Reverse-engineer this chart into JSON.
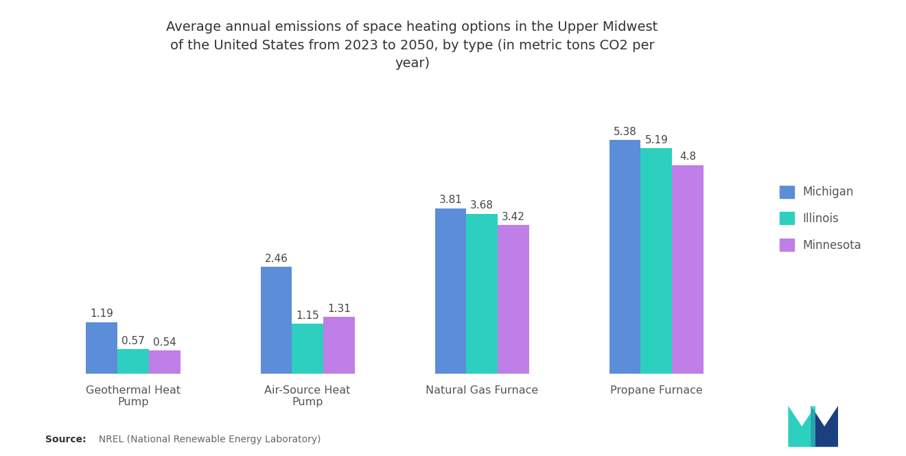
{
  "title": "Average annual emissions of space heating options in the Upper Midwest\nof the United States from 2023 to 2050, by type (in metric tons CO2 per\nyear)",
  "categories": [
    "Geothermal Heat\nPump",
    "Air-Source Heat\nPump",
    "Natural Gas Furnace",
    "Propane Furnace"
  ],
  "series": {
    "Michigan": [
      1.19,
      2.46,
      3.81,
      5.38
    ],
    "Illinois": [
      0.57,
      1.15,
      3.68,
      5.19
    ],
    "Minnesota": [
      0.54,
      1.31,
      3.42,
      4.8
    ]
  },
  "colors": {
    "Michigan": "#5b8dd9",
    "Illinois": "#2dcfbf",
    "Minnesota": "#c07ee8"
  },
  "source_bold": "Source:",
  "source_rest": "  NREL (National Renewable Energy Laboratory)",
  "background_color": "#ffffff",
  "title_fontsize": 14,
  "label_fontsize": 11.5,
  "value_fontsize": 11,
  "legend_fontsize": 12,
  "ylim": [
    0,
    6.5
  ],
  "bar_width": 0.18,
  "group_positions": [
    0.3,
    1.3,
    2.3,
    3.3
  ]
}
